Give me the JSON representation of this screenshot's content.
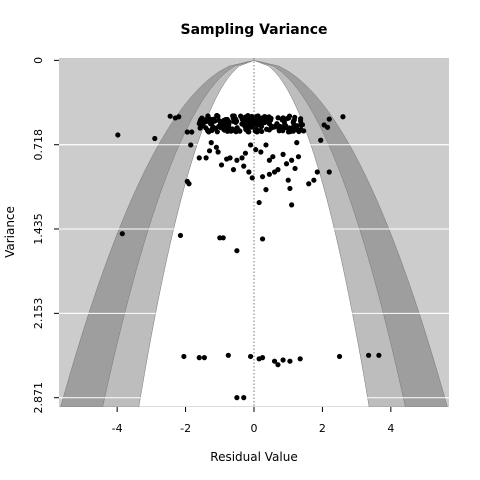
{
  "chart_data": {
    "type": "scatter",
    "title": "Sampling Variance",
    "xlabel": "Residual Value",
    "ylabel": "Variance",
    "xlim": [
      -5.7,
      5.7
    ],
    "ylim": [
      2.95,
      -0.02
    ],
    "y_inverted": true,
    "x_ticks": [
      -4,
      -2,
      0,
      2,
      4
    ],
    "x_tick_labels": [
      "-4",
      "-2",
      "0",
      "2",
      "4"
    ],
    "y_ticks": [
      0,
      0.718,
      1.435,
      2.153,
      2.871
    ],
    "y_tick_labels": [
      "0",
      "0.718",
      "1.435",
      "2.153",
      "2.871"
    ],
    "grid": "horizontal",
    "background_color": "#cccccc",
    "funnel_colors": [
      "#9e9e9e",
      "#bdbdbd",
      "#ffffff"
    ],
    "point_color": "#000000",
    "funnel_z": [
      1.96,
      2.576,
      3.291
    ],
    "points": [
      [
        -3.98,
        0.635
      ],
      [
        -3.85,
        1.475
      ],
      [
        -2.9,
        0.665
      ],
      [
        -2.45,
        0.475
      ],
      [
        -2.3,
        0.49
      ],
      [
        -2.2,
        0.48
      ],
      [
        -1.95,
        0.61
      ],
      [
        -1.82,
        0.61
      ],
      [
        -1.95,
        1.03
      ],
      [
        -1.9,
        1.05
      ],
      [
        -2.15,
        1.49
      ],
      [
        -1.85,
        0.72
      ],
      [
        -1.6,
        0.83
      ],
      [
        -1.4,
        0.83
      ],
      [
        -1.3,
        0.77
      ],
      [
        -1.25,
        0.7
      ],
      [
        -1.1,
        0.74
      ],
      [
        -1.05,
        0.78
      ],
      [
        -0.95,
        0.89
      ],
      [
        -0.8,
        0.84
      ],
      [
        -0.7,
        0.83
      ],
      [
        -0.6,
        0.93
      ],
      [
        -0.5,
        0.85
      ],
      [
        -0.35,
        0.83
      ],
      [
        -0.25,
        0.79
      ],
      [
        -0.1,
        0.72
      ],
      [
        -0.3,
        0.9
      ],
      [
        -0.15,
        0.95
      ],
      [
        0.05,
        0.76
      ],
      [
        0.2,
        0.78
      ],
      [
        0.35,
        0.72
      ],
      [
        0.45,
        0.85
      ],
      [
        0.55,
        0.82
      ],
      [
        0.7,
        0.93
      ],
      [
        0.85,
        0.8
      ],
      [
        0.95,
        0.88
      ],
      [
        1.1,
        0.85
      ],
      [
        1.2,
        0.92
      ],
      [
        1.3,
        0.82
      ],
      [
        1.25,
        0.7
      ],
      [
        1.45,
        0.6
      ],
      [
        1.6,
        1.05
      ],
      [
        1.75,
        1.02
      ],
      [
        1.85,
        0.95
      ],
      [
        2.2,
        0.5
      ],
      [
        2.05,
        0.55
      ],
      [
        1.95,
        0.68
      ],
      [
        2.15,
        0.57
      ],
      [
        2.2,
        0.95
      ],
      [
        2.6,
        0.48
      ],
      [
        0.15,
        1.21
      ],
      [
        0.35,
        1.1
      ],
      [
        0.45,
        0.97
      ],
      [
        0.6,
        0.95
      ],
      [
        1.0,
        1.02
      ],
      [
        1.1,
        1.23
      ],
      [
        1.05,
        1.09
      ],
      [
        -0.05,
        1.0
      ],
      [
        0.25,
        0.99
      ],
      [
        -0.5,
        1.62
      ],
      [
        -1.0,
        1.51
      ],
      [
        -0.9,
        1.51
      ],
      [
        0.25,
        1.52
      ],
      [
        -2.05,
        2.52
      ],
      [
        -1.6,
        2.53
      ],
      [
        -1.45,
        2.53
      ],
      [
        -0.75,
        2.51
      ],
      [
        -0.1,
        2.52
      ],
      [
        0.15,
        2.54
      ],
      [
        0.25,
        2.53
      ],
      [
        0.6,
        2.56
      ],
      [
        0.7,
        2.59
      ],
      [
        0.85,
        2.55
      ],
      [
        1.05,
        2.56
      ],
      [
        1.35,
        2.54
      ],
      [
        2.5,
        2.52
      ],
      [
        3.35,
        2.51
      ],
      [
        3.65,
        2.51
      ],
      [
        -0.5,
        2.87
      ],
      [
        -0.3,
        2.87
      ]
    ]
  }
}
